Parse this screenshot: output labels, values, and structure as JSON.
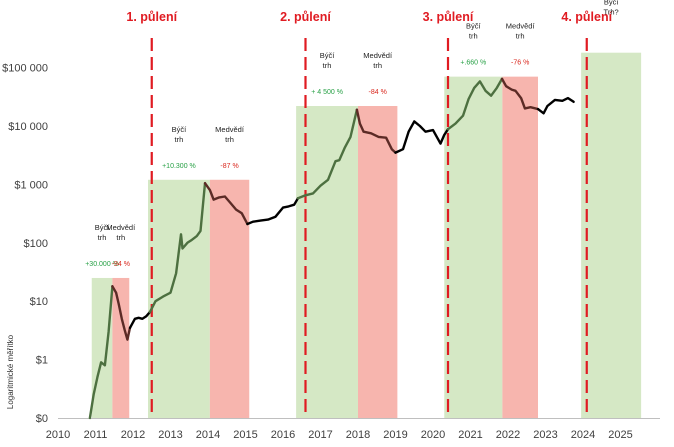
{
  "chart_data": {
    "type": "line",
    "title": "",
    "ylabel": "Logaritmické měřítko",
    "xlabel": "",
    "y_scale": "log",
    "x_ticks": [
      "2010",
      "2011",
      "2012",
      "2013",
      "2014",
      "2015",
      "2016",
      "2017",
      "2018",
      "2019",
      "2020",
      "2021",
      "2022",
      "2023",
      "2024",
      "2025"
    ],
    "y_ticks": [
      {
        "value": 0.1,
        "label": "$0"
      },
      {
        "value": 1,
        "label": "$1"
      },
      {
        "value": 10,
        "label": "$10"
      },
      {
        "value": 100,
        "label": "$100"
      },
      {
        "value": 1000,
        "label": "$1 000"
      },
      {
        "value": 10000,
        "label": "$10 000"
      },
      {
        "value": 100000,
        "label": "$100 000"
      }
    ],
    "xlim": [
      2010,
      2026.1
    ],
    "ylim": [
      0.1,
      200000
    ],
    "colors": {
      "bull_fill": "#d5e8c5",
      "bear_fill": "#f7b5ae",
      "bull_line": "#4d7040",
      "bear_line": "#5c2b26",
      "neutral_line": "#000000",
      "halving": "#e01b22",
      "bull_pct": "#27a045",
      "bear_pct": "#d9261c"
    },
    "halvings": [
      {
        "label": "1. půlení",
        "x": 2012.5
      },
      {
        "label": "2. půlení",
        "x": 2016.6
      },
      {
        "label": "3. půlení",
        "x": 2020.4
      },
      {
        "label": "4. půlení",
        "x": 2024.1
      }
    ],
    "regions": [
      {
        "phase": "bull",
        "x0": 2010.9,
        "x1": 2011.45,
        "top": 25,
        "label": [
          "Býčí",
          "trh"
        ],
        "pct": "+30.000 %"
      },
      {
        "phase": "bear",
        "x0": 2011.45,
        "x1": 2011.9,
        "top": 25,
        "label": [
          "Medvědí",
          "trh"
        ],
        "pct": "-94 %"
      },
      {
        "phase": "bull",
        "x0": 2012.4,
        "x1": 2014.05,
        "top": 1200,
        "label": [
          "Býčí",
          "trh"
        ],
        "pct": "+10.300 %"
      },
      {
        "phase": "bear",
        "x0": 2014.05,
        "x1": 2015.1,
        "top": 1200,
        "label": [
          "Medvědí",
          "trh"
        ],
        "pct": "-87 %"
      },
      {
        "phase": "bull",
        "x0": 2016.35,
        "x1": 2018.0,
        "top": 22000,
        "label": [
          "Býčí",
          "trh"
        ],
        "pct": "+ 4 500 %"
      },
      {
        "phase": "bear",
        "x0": 2018.0,
        "x1": 2019.05,
        "top": 22000,
        "label": [
          "Medvědí",
          "trh"
        ],
        "pct": "-84 %"
      },
      {
        "phase": "bull",
        "x0": 2020.3,
        "x1": 2021.85,
        "top": 70000,
        "label": [
          "Býčí",
          "trh"
        ],
        "pct": "+.660 %"
      },
      {
        "phase": "bear",
        "x0": 2021.85,
        "x1": 2022.8,
        "top": 70000,
        "label": [
          "Medvědí",
          "trh"
        ],
        "pct": "-76 %"
      },
      {
        "phase": "bull",
        "x0": 2023.95,
        "x1": 2025.55,
        "top": 180000,
        "label": [
          "Býčí",
          "Trh?"
        ],
        "pct": ""
      }
    ],
    "series": [
      {
        "segment": "bull",
        "points": [
          [
            2010.85,
            0.1
          ],
          [
            2010.95,
            0.25
          ],
          [
            2011.05,
            0.5
          ],
          [
            2011.15,
            0.9
          ],
          [
            2011.25,
            0.8
          ],
          [
            2011.35,
            3
          ],
          [
            2011.45,
            18
          ]
        ]
      },
      {
        "segment": "bear",
        "points": [
          [
            2011.45,
            18
          ],
          [
            2011.55,
            14
          ],
          [
            2011.62,
            9
          ],
          [
            2011.7,
            5
          ],
          [
            2011.78,
            3.2
          ],
          [
            2011.85,
            2.2
          ],
          [
            2011.92,
            3.5
          ]
        ]
      },
      {
        "segment": "neutral",
        "points": [
          [
            2011.92,
            3.5
          ],
          [
            2012.05,
            5
          ],
          [
            2012.15,
            5.2
          ],
          [
            2012.25,
            5
          ],
          [
            2012.35,
            5.5
          ],
          [
            2012.45,
            6.5
          ]
        ]
      },
      {
        "segment": "bull",
        "points": [
          [
            2012.45,
            6.5
          ],
          [
            2012.6,
            10
          ],
          [
            2012.8,
            12
          ],
          [
            2013.0,
            14
          ],
          [
            2013.15,
            30
          ],
          [
            2013.28,
            140
          ],
          [
            2013.32,
            80
          ],
          [
            2013.45,
            100
          ],
          [
            2013.55,
            110
          ],
          [
            2013.7,
            130
          ],
          [
            2013.8,
            160
          ],
          [
            2013.92,
            1050
          ]
        ]
      },
      {
        "segment": "bear",
        "points": [
          [
            2013.92,
            1050
          ],
          [
            2014.05,
            800
          ],
          [
            2014.15,
            550
          ],
          [
            2014.3,
            600
          ],
          [
            2014.45,
            620
          ],
          [
            2014.6,
            480
          ],
          [
            2014.75,
            370
          ],
          [
            2014.9,
            320
          ],
          [
            2015.05,
            210
          ]
        ]
      },
      {
        "segment": "neutral",
        "points": [
          [
            2015.05,
            210
          ],
          [
            2015.2,
            230
          ],
          [
            2015.4,
            240
          ],
          [
            2015.6,
            250
          ],
          [
            2015.8,
            280
          ],
          [
            2016.0,
            400
          ],
          [
            2016.15,
            420
          ],
          [
            2016.3,
            450
          ],
          [
            2016.4,
            580
          ]
        ]
      },
      {
        "segment": "bull",
        "points": [
          [
            2016.4,
            580
          ],
          [
            2016.6,
            650
          ],
          [
            2016.8,
            700
          ],
          [
            2017.0,
            950
          ],
          [
            2017.2,
            1200
          ],
          [
            2017.4,
            2500
          ],
          [
            2017.5,
            2600
          ],
          [
            2017.65,
            4300
          ],
          [
            2017.8,
            6500
          ],
          [
            2017.97,
            19000
          ]
        ]
      },
      {
        "segment": "bear",
        "points": [
          [
            2017.97,
            19000
          ],
          [
            2018.05,
            11000
          ],
          [
            2018.15,
            8000
          ],
          [
            2018.35,
            7500
          ],
          [
            2018.55,
            6500
          ],
          [
            2018.75,
            6300
          ],
          [
            2018.9,
            4000
          ],
          [
            2019.0,
            3500
          ]
        ]
      },
      {
        "segment": "neutral",
        "points": [
          [
            2019.0,
            3500
          ],
          [
            2019.2,
            4000
          ],
          [
            2019.35,
            8000
          ],
          [
            2019.5,
            12000
          ],
          [
            2019.65,
            10000
          ],
          [
            2019.8,
            8000
          ],
          [
            2020.0,
            8500
          ],
          [
            2020.2,
            5000
          ],
          [
            2020.3,
            7000
          ],
          [
            2020.4,
            8800
          ]
        ]
      },
      {
        "segment": "bull",
        "points": [
          [
            2020.4,
            8800
          ],
          [
            2020.6,
            11000
          ],
          [
            2020.8,
            15000
          ],
          [
            2020.95,
            29000
          ],
          [
            2021.1,
            45000
          ],
          [
            2021.25,
            58000
          ],
          [
            2021.4,
            40000
          ],
          [
            2021.55,
            33000
          ],
          [
            2021.7,
            45000
          ],
          [
            2021.84,
            64000
          ]
        ]
      },
      {
        "segment": "bear",
        "points": [
          [
            2021.84,
            64000
          ],
          [
            2021.95,
            48000
          ],
          [
            2022.1,
            42000
          ],
          [
            2022.2,
            40000
          ],
          [
            2022.35,
            30000
          ],
          [
            2022.45,
            20000
          ],
          [
            2022.6,
            21000
          ],
          [
            2022.8,
            19500
          ]
        ]
      },
      {
        "segment": "neutral",
        "points": [
          [
            2022.8,
            19500
          ],
          [
            2022.95,
            16500
          ],
          [
            2023.05,
            22000
          ],
          [
            2023.25,
            28000
          ],
          [
            2023.45,
            27000
          ],
          [
            2023.6,
            30000
          ],
          [
            2023.75,
            26000
          ]
        ]
      }
    ]
  }
}
